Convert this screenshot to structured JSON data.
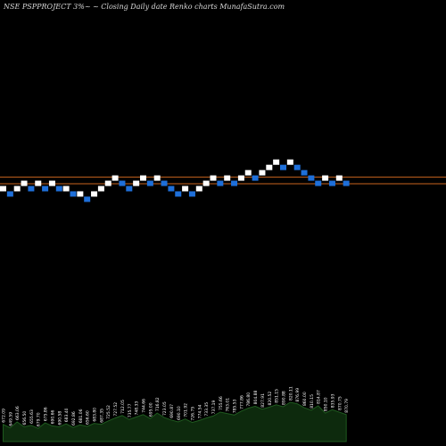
{
  "title": "NSE PSPPROJECT 3%~ ~ Closing Daily date Renko charts MunafaSutra.com",
  "chart_data": {
    "type": "renko",
    "bricks": [
      {
        "x": 0,
        "level": 0,
        "dir": "up"
      },
      {
        "x": 1,
        "level": -1,
        "dir": "down"
      },
      {
        "x": 2,
        "level": 0,
        "dir": "up"
      },
      {
        "x": 3,
        "level": 1,
        "dir": "up"
      },
      {
        "x": 4,
        "level": 0,
        "dir": "down"
      },
      {
        "x": 5,
        "level": 1,
        "dir": "up"
      },
      {
        "x": 6,
        "level": 0,
        "dir": "down"
      },
      {
        "x": 7,
        "level": 1,
        "dir": "up"
      },
      {
        "x": 8,
        "level": 0,
        "dir": "down"
      },
      {
        "x": 9,
        "level": 0,
        "dir": "up"
      },
      {
        "x": 10,
        "level": -1,
        "dir": "down"
      },
      {
        "x": 11,
        "level": -1,
        "dir": "up"
      },
      {
        "x": 12,
        "level": -2,
        "dir": "down"
      },
      {
        "x": 13,
        "level": -1,
        "dir": "up"
      },
      {
        "x": 14,
        "level": 0,
        "dir": "up"
      },
      {
        "x": 15,
        "level": 1,
        "dir": "up"
      },
      {
        "x": 16,
        "level": 2,
        "dir": "up"
      },
      {
        "x": 17,
        "level": 1,
        "dir": "down"
      },
      {
        "x": 18,
        "level": 0,
        "dir": "down"
      },
      {
        "x": 19,
        "level": 1,
        "dir": "up"
      },
      {
        "x": 20,
        "level": 2,
        "dir": "up"
      },
      {
        "x": 21,
        "level": 1,
        "dir": "down"
      },
      {
        "x": 22,
        "level": 2,
        "dir": "up"
      },
      {
        "x": 23,
        "level": 1,
        "dir": "down"
      },
      {
        "x": 24,
        "level": 0,
        "dir": "down"
      },
      {
        "x": 25,
        "level": -1,
        "dir": "down"
      },
      {
        "x": 26,
        "level": 0,
        "dir": "up"
      },
      {
        "x": 27,
        "level": -1,
        "dir": "down"
      },
      {
        "x": 28,
        "level": 0,
        "dir": "up"
      },
      {
        "x": 29,
        "level": 1,
        "dir": "up"
      },
      {
        "x": 30,
        "level": 2,
        "dir": "up"
      },
      {
        "x": 31,
        "level": 1,
        "dir": "down"
      },
      {
        "x": 32,
        "level": 2,
        "dir": "up"
      },
      {
        "x": 33,
        "level": 1,
        "dir": "down"
      },
      {
        "x": 34,
        "level": 2,
        "dir": "up"
      },
      {
        "x": 35,
        "level": 3,
        "dir": "up"
      },
      {
        "x": 36,
        "level": 2,
        "dir": "down"
      },
      {
        "x": 37,
        "level": 3,
        "dir": "up"
      },
      {
        "x": 38,
        "level": 4,
        "dir": "up"
      },
      {
        "x": 39,
        "level": 5,
        "dir": "up"
      },
      {
        "x": 40,
        "level": 4,
        "dir": "down"
      },
      {
        "x": 41,
        "level": 5,
        "dir": "up"
      },
      {
        "x": 42,
        "level": 4,
        "dir": "down"
      },
      {
        "x": 43,
        "level": 3,
        "dir": "down"
      },
      {
        "x": 44,
        "level": 2,
        "dir": "down"
      },
      {
        "x": 45,
        "level": 1,
        "dir": "down"
      },
      {
        "x": 46,
        "level": 2,
        "dir": "up"
      },
      {
        "x": 47,
        "level": 1,
        "dir": "down"
      },
      {
        "x": 48,
        "level": 2,
        "dir": "up"
      },
      {
        "x": 49,
        "level": 1,
        "dir": "down"
      }
    ],
    "reference_levels": [
      2,
      0.5
    ],
    "up_color": "#ffffff",
    "down_color": "#1e6fd9",
    "reference_line_color": "#c8641e",
    "volume_fill_color": "#0d2a0d",
    "volume_line_color": "#1f5a1f",
    "labels_color": "#ffffff",
    "volume_heights": [
      0.35,
      0.28,
      0.4,
      0.3,
      0.33,
      0.27,
      0.38,
      0.32,
      0.3,
      0.36,
      0.29,
      0.34,
      0.31,
      0.37,
      0.35,
      0.42,
      0.48,
      0.53,
      0.45,
      0.5,
      0.55,
      0.47,
      0.58,
      0.49,
      0.44,
      0.4,
      0.46,
      0.39,
      0.43,
      0.48,
      0.52,
      0.6,
      0.57,
      0.54,
      0.62,
      0.68,
      0.72,
      0.66,
      0.7,
      0.75,
      0.71,
      0.8,
      0.77,
      0.69,
      0.64,
      0.73,
      0.58,
      0.65,
      0.6,
      0.55
    ],
    "point_labels": [
      "672.09",
      "649.59",
      "663.06",
      "656.50",
      "655.63",
      "679.70",
      "675.86",
      "690.66",
      "690.58",
      "683.40",
      "692.86",
      "681.06",
      "656.60",
      "683.80",
      "687.35",
      "725.52",
      "727.52",
      "712.05",
      "735.77",
      "748.33",
      "744.66",
      "695.00",
      "716.82",
      "723.05",
      "690.87",
      "690.10",
      "701.92",
      "726.75",
      "774.54",
      "733.35",
      "737.19",
      "755.66",
      "763.01",
      "785.53",
      "777.86",
      "786.80",
      "804.88",
      "827.91",
      "820.52",
      "851.15",
      "890.88",
      "820.11",
      "876.99",
      "860.00",
      "810.15",
      "814.87",
      "850.10",
      "835.93",
      "870.75",
      "870.79"
    ]
  }
}
